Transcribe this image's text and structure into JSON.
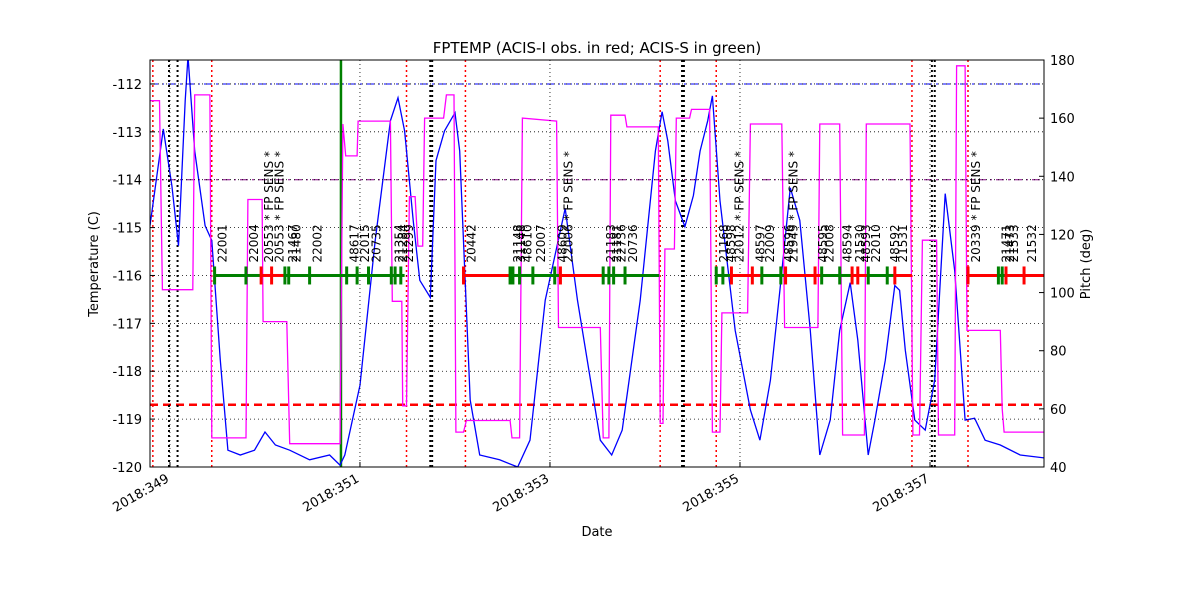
{
  "chart_data": {
    "type": "line",
    "title": "FPTEMP (ACIS-I obs. in red; ACIS-S in green)",
    "x_label": "Date",
    "y_label": "Temperature (C)",
    "y2_label": "Pitch (deg)",
    "y2_color": "#ff00ff",
    "grid": true,
    "xlim": [
      348.79,
      358.2
    ],
    "xticks": [
      {
        "value": 349,
        "label": "2018:349"
      },
      {
        "value": 351,
        "label": "2018:351"
      },
      {
        "value": 353,
        "label": "2018:353"
      },
      {
        "value": 355,
        "label": "2018:355"
      },
      {
        "value": 357,
        "label": "2018:357"
      }
    ],
    "ylim": [
      -120,
      -111.5
    ],
    "yticks": [
      -120,
      -119,
      -118,
      -117,
      -116,
      -115,
      -114,
      -113,
      -112
    ],
    "y2lim": [
      40,
      180
    ],
    "y2ticks": [
      40,
      60,
      80,
      100,
      120,
      140,
      160,
      180
    ],
    "series": [
      {
        "color": "#0000ff",
        "axis": "y",
        "x": [
          348.79,
          348.93,
          349.02,
          349.09,
          349.16,
          349.19,
          349.26,
          349.37,
          349.44,
          349.53,
          349.61,
          349.74,
          349.89,
          350.0,
          350.11,
          350.26,
          350.47,
          350.68,
          350.79,
          350.84,
          351.0,
          351.16,
          351.32,
          351.4,
          351.47,
          351.56,
          351.63,
          351.74,
          351.8,
          351.89,
          352.0,
          352.05,
          352.16,
          352.26,
          352.47,
          352.66,
          352.79,
          352.95,
          353.16,
          353.29,
          353.53,
          353.65,
          353.76,
          353.95,
          354.11,
          354.18,
          354.24,
          354.32,
          354.42,
          354.51,
          354.58,
          354.66,
          354.71,
          354.79,
          354.95,
          355.11,
          355.21,
          355.32,
          355.42,
          355.53,
          355.63,
          355.74,
          355.84,
          355.95,
          356.05,
          356.16,
          356.24,
          356.35,
          356.42,
          356.53,
          356.63,
          356.68,
          356.74,
          356.84,
          356.95,
          357.05,
          357.16,
          357.26,
          357.37,
          357.47,
          357.58,
          357.74,
          357.95,
          358.2
        ],
        "values": [
          -114.96,
          -112.94,
          -114.13,
          -115.38,
          -112.35,
          -111.42,
          -113.4,
          -114.96,
          -115.27,
          -117.77,
          -119.65,
          -119.75,
          -119.65,
          -119.27,
          -119.54,
          -119.65,
          -119.85,
          -119.75,
          -119.96,
          -119.75,
          -118.29,
          -115.27,
          -112.77,
          -112.29,
          -112.98,
          -114.85,
          -116.1,
          -116.46,
          -113.6,
          -112.98,
          -112.6,
          -113.4,
          -118.6,
          -119.75,
          -119.85,
          -120,
          -119.44,
          -116.52,
          -114.6,
          -116.52,
          -119.44,
          -119.75,
          -119.23,
          -116.52,
          -113.4,
          -112.58,
          -113.19,
          -114.44,
          -114.98,
          -114.33,
          -113.4,
          -112.77,
          -112.25,
          -114.44,
          -117.15,
          -118.81,
          -119.44,
          -118.19,
          -116.31,
          -114.17,
          -114.85,
          -117.15,
          -119.75,
          -119.02,
          -117.15,
          -116.15,
          -117.35,
          -119.75,
          -119.02,
          -117.77,
          -116.21,
          -116.31,
          -117.56,
          -119.02,
          -119.23,
          -118.19,
          -114.29,
          -115.9,
          -119.02,
          -118.98,
          -119.44,
          -119.54,
          -119.75,
          -119.81
        ]
      },
      {
        "color": "#ff00ff",
        "axis": "y2",
        "x": [
          348.79,
          348.89,
          348.92,
          349.24,
          349.26,
          349.42,
          349.44,
          349.8,
          349.82,
          349.97,
          349.98,
          350.23,
          350.26,
          350.79,
          350.82,
          350.85,
          350.97,
          350.98,
          351.32,
          351.34,
          351.44,
          351.45,
          351.49,
          351.52,
          351.58,
          351.61,
          351.66,
          351.68,
          351.88,
          351.91,
          351.99,
          352.01,
          352.09,
          352.12,
          352.58,
          352.6,
          352.68,
          352.71,
          353.07,
          353.09,
          353.53,
          353.56,
          353.62,
          353.64,
          353.79,
          353.81,
          354.14,
          354.16,
          354.19,
          354.21,
          354.31,
          354.33,
          354.47,
          354.49,
          354.68,
          354.71,
          354.79,
          354.81,
          355.08,
          355.11,
          355.44,
          355.47,
          355.82,
          355.84,
          356.05,
          356.08,
          356.31,
          356.33,
          356.79,
          356.82,
          356.89,
          356.92,
          357.07,
          357.09,
          357.26,
          357.28,
          357.37,
          357.39,
          357.74,
          357.76,
          357.78,
          358.2
        ],
        "values": [
          166,
          166,
          101,
          101,
          168,
          168,
          50,
          50,
          132,
          132,
          90,
          90,
          48,
          48,
          158,
          147,
          147,
          159,
          159,
          97,
          97,
          61,
          61,
          133,
          133,
          116,
          116,
          160,
          160,
          168,
          168,
          52,
          52,
          56,
          56,
          50,
          50,
          160,
          159,
          88,
          88,
          50,
          50,
          161,
          161,
          157,
          157,
          55,
          55,
          115,
          115,
          160,
          160,
          163,
          163,
          52,
          52,
          93,
          93,
          158,
          158,
          88,
          88,
          158,
          158,
          51,
          51,
          158,
          158,
          51,
          51,
          118,
          118,
          51,
          51,
          178,
          178,
          87,
          87,
          60,
          52,
          52
        ]
      }
    ],
    "hlines": [
      {
        "y": -112,
        "color": "#0000ff",
        "dash": "dashdot"
      },
      {
        "y": -114,
        "color": "#800080",
        "dash": "dashdot"
      },
      {
        "y": -118.7,
        "color": "#ff0000",
        "dash": "dashed"
      }
    ],
    "vlines": [
      {
        "x": 348.82,
        "color": "#ff0000",
        "dash": "dotted"
      },
      {
        "x": 349.44,
        "color": "#ff0000",
        "dash": "dotted"
      },
      {
        "x": 351.49,
        "color": "#ff0000",
        "dash": "dotted"
      },
      {
        "x": 352.11,
        "color": "#ff0000",
        "dash": "dotted"
      },
      {
        "x": 354.16,
        "color": "#ff0000",
        "dash": "dotted"
      },
      {
        "x": 354.75,
        "color": "#ff0000",
        "dash": "dotted"
      },
      {
        "x": 356.81,
        "color": "#ff0000",
        "dash": "dotted"
      },
      {
        "x": 357.4,
        "color": "#ff0000",
        "dash": "dotted"
      },
      {
        "x": 348.99,
        "color": "#000000",
        "dash": "dotted"
      },
      {
        "x": 349.08,
        "color": "#000000",
        "dash": "dotted"
      },
      {
        "x": 351.74,
        "color": "#000000",
        "dash": "dotted"
      },
      {
        "x": 351.76,
        "color": "#000000",
        "dash": "dotted"
      },
      {
        "x": 354.39,
        "color": "#000000",
        "dash": "dotted"
      },
      {
        "x": 354.41,
        "color": "#000000",
        "dash": "dotted"
      },
      {
        "x": 357.02,
        "color": "#000000",
        "dash": "dotted"
      },
      {
        "x": 357.05,
        "color": "#000000",
        "dash": "dotted"
      },
      {
        "x": 350.8,
        "color": "#008000",
        "dash": "solid"
      }
    ],
    "observation_level": -116,
    "observations": [
      {
        "label": "22001",
        "color": "#008000",
        "start": 349.47,
        "stop": 349.8
      },
      {
        "label": "22004",
        "color": "#008000",
        "start": 349.8,
        "stop": 349.96
      },
      {
        "label": "20553 * FP SENS *",
        "color": "#ff0000",
        "start": 349.96,
        "stop": 350.07
      },
      {
        "label": "20553 * FP SENS *",
        "color": "#ff0000",
        "start": 350.07,
        "stop": 350.21
      },
      {
        "label": "21467",
        "color": "#008000",
        "start": 350.21,
        "stop": 350.25
      },
      {
        "label": "21480",
        "color": "#008000",
        "start": 350.25,
        "stop": 350.47
      },
      {
        "label": "22002",
        "color": "#008000",
        "start": 350.47,
        "stop": 350.86
      },
      {
        "label": "48617",
        "color": "#008000",
        "start": 350.86,
        "stop": 350.97
      },
      {
        "label": "22015",
        "color": "#008000",
        "start": 350.97,
        "stop": 351.09
      },
      {
        "label": "20735",
        "color": "#008000",
        "start": 351.09,
        "stop": 351.33
      },
      {
        "label": "21354",
        "color": "#008000",
        "start": 351.33,
        "stop": 351.37
      },
      {
        "label": "21284",
        "color": "#008000",
        "start": 351.37,
        "stop": 351.43
      },
      {
        "label": "21299",
        "color": "#008000",
        "start": 351.43,
        "stop": 351.47
      },
      {
        "label": "20442",
        "color": "#ff0000",
        "start": 352.09,
        "stop": 352.58
      },
      {
        "label": "21148",
        "color": "#008000",
        "start": 352.58,
        "stop": 352.61
      },
      {
        "label": "31148",
        "color": "#008000",
        "start": 352.61,
        "stop": 352.68
      },
      {
        "label": "48610",
        "color": "#008000",
        "start": 352.68,
        "stop": 352.82
      },
      {
        "label": "22007",
        "color": "#008000",
        "start": 352.82,
        "stop": 353.05
      },
      {
        "label": "48609",
        "color": "#008000",
        "start": 353.05,
        "stop": 353.11
      },
      {
        "label": "22006 * FP SENS *",
        "color": "#ff0000",
        "start": 353.11,
        "stop": 353.56
      },
      {
        "label": "21183",
        "color": "#008000",
        "start": 353.56,
        "stop": 353.62
      },
      {
        "label": "21181",
        "color": "#008000",
        "start": 353.62,
        "stop": 353.67
      },
      {
        "label": "22736",
        "color": "#008000",
        "start": 353.67,
        "stop": 353.79
      },
      {
        "label": "20736",
        "color": "#008000",
        "start": 353.79,
        "stop": 354.15
      },
      {
        "label": "21168",
        "color": "#008000",
        "start": 354.75,
        "stop": 354.82
      },
      {
        "label": "48598",
        "color": "#008000",
        "start": 354.82,
        "stop": 354.91
      },
      {
        "label": "22012 * FP SENS *",
        "color": "#ff0000",
        "start": 354.91,
        "stop": 355.13
      },
      {
        "label": "48597",
        "color": "#ff0000",
        "start": 355.13,
        "stop": 355.23
      },
      {
        "label": "22009",
        "color": "#008000",
        "start": 355.23,
        "stop": 355.43
      },
      {
        "label": "48596",
        "color": "#008000",
        "start": 355.43,
        "stop": 355.48
      },
      {
        "label": "21949 * FP SENS *",
        "color": "#ff0000",
        "start": 355.48,
        "stop": 355.79
      },
      {
        "label": "48595",
        "color": "#ff0000",
        "start": 355.79,
        "stop": 355.86
      },
      {
        "label": "22008",
        "color": "#008000",
        "start": 355.86,
        "stop": 356.05
      },
      {
        "label": "48594",
        "color": "#008000",
        "start": 356.05,
        "stop": 356.18
      },
      {
        "label": "21530",
        "color": "#ff0000",
        "start": 356.18,
        "stop": 356.24
      },
      {
        "label": "48593",
        "color": "#ff0000",
        "start": 356.24,
        "stop": 356.35
      },
      {
        "label": "22010",
        "color": "#008000",
        "start": 356.35,
        "stop": 356.55
      },
      {
        "label": "48592",
        "color": "#008000",
        "start": 356.55,
        "stop": 356.63
      },
      {
        "label": "21531",
        "color": "#ff0000",
        "start": 356.63,
        "stop": 356.81
      },
      {
        "label": "20339 * FP SENS *",
        "color": "#ff0000",
        "start": 357.4,
        "stop": 357.72
      },
      {
        "label": "21471",
        "color": "#008000",
        "start": 357.72,
        "stop": 357.76
      },
      {
        "label": "21473",
        "color": "#008000",
        "start": 357.76,
        "stop": 357.8
      },
      {
        "label": "21533",
        "color": "#ff0000",
        "start": 357.8,
        "stop": 357.99
      },
      {
        "label": "21532",
        "color": "#ff0000",
        "start": 357.99,
        "stop": 358.2
      }
    ]
  }
}
